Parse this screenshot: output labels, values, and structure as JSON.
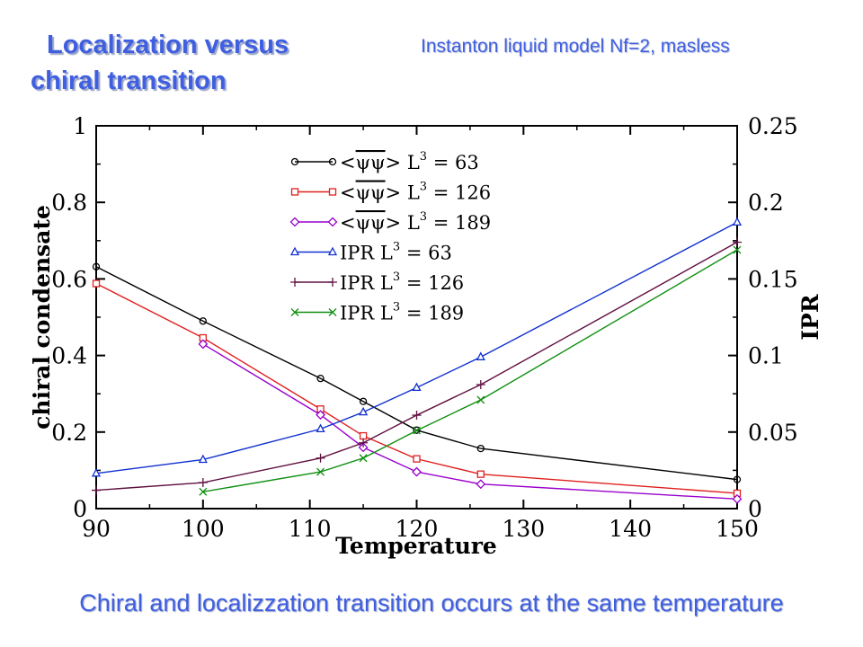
{
  "slide": {
    "title_line1": "Localization versus",
    "title_line2": "chiral transition",
    "subtitle": "Instanton liquid model Nf=2, masless",
    "caption": "Chiral and localizzation transition occurs at the same temperature"
  },
  "colors": {
    "accent": "#3f5fe0",
    "black": "#000000",
    "red": "#e02020",
    "purple": "#9900cc",
    "blue": "#1030d0",
    "maroon": "#601040",
    "green": "#109010"
  },
  "chart_data": {
    "type": "line",
    "title": "",
    "xlabel": "Temperature",
    "ylabel": "chiral condensate",
    "y2label": "IPR",
    "xlim": [
      90,
      150
    ],
    "ylim": [
      0,
      1
    ],
    "y2lim": [
      0,
      0.25
    ],
    "x_ticks": [
      "90",
      "100",
      "110",
      "120",
      "130",
      "140",
      "150"
    ],
    "y_ticks": [
      "0",
      "0.2",
      "0.4",
      "0.6",
      "0.8",
      "1"
    ],
    "y2_ticks": [
      "0",
      "0.05",
      "0.1",
      "0.15",
      "0.2",
      "0.25"
    ],
    "grid": false,
    "legend_position": "top-center",
    "series": [
      {
        "name": "<ψψ> L³ = 63",
        "legend": {
          "pre": "<",
          "psi": "ψψ",
          "post": ">  L",
          "sup": "3",
          "tail": " = 63"
        },
        "axis": "left",
        "color": "#000000",
        "marker": "circle",
        "x": [
          90,
          100,
          111,
          115,
          120,
          126,
          150
        ],
        "y": [
          0.632,
          0.49,
          0.34,
          0.28,
          0.205,
          0.157,
          0.076
        ]
      },
      {
        "name": "<ψψ> L³ = 126",
        "legend": {
          "pre": "<",
          "psi": "ψψ",
          "post": ">  L",
          "sup": "3",
          "tail": " = 126"
        },
        "axis": "left",
        "color": "#e02020",
        "marker": "square",
        "x": [
          90,
          100,
          111,
          115,
          120,
          126,
          150
        ],
        "y": [
          0.588,
          0.446,
          0.26,
          0.19,
          0.13,
          0.09,
          0.04
        ]
      },
      {
        "name": "<ψψ> L³ = 189",
        "legend": {
          "pre": "<",
          "psi": "ψψ",
          "post": ">  L",
          "sup": "3",
          "tail": " = 189"
        },
        "axis": "left",
        "color": "#9900cc",
        "marker": "diamond",
        "x": [
          100,
          111,
          115,
          120,
          126,
          150
        ],
        "y": [
          0.43,
          0.245,
          0.16,
          0.096,
          0.064,
          0.025
        ]
      },
      {
        "name": "IPR L³ = 63",
        "legend": {
          "pre": "IPR  L",
          "sup": "3",
          "tail": " = 63"
        },
        "axis": "right",
        "color": "#1030d0",
        "marker": "triangle",
        "x": [
          90,
          100,
          111,
          115,
          120,
          126,
          150
        ],
        "y": [
          0.023,
          0.032,
          0.052,
          0.063,
          0.079,
          0.099,
          0.187
        ]
      },
      {
        "name": "IPR L³ = 126",
        "legend": {
          "pre": "IPR  L",
          "sup": "3",
          "tail": " = 126"
        },
        "axis": "right",
        "color": "#601040",
        "marker": "plus",
        "x": [
          90,
          100,
          111,
          115,
          120,
          126,
          150
        ],
        "y": [
          0.012,
          0.017,
          0.033,
          0.043,
          0.061,
          0.081,
          0.174
        ]
      },
      {
        "name": "IPR L³ = 189",
        "legend": {
          "pre": "IPR  L",
          "sup": "3",
          "tail": " = 189"
        },
        "axis": "right",
        "color": "#109010",
        "marker": "cross",
        "x": [
          100,
          111,
          115,
          120,
          126,
          150
        ],
        "y": [
          0.011,
          0.024,
          0.033,
          0.051,
          0.071,
          0.169
        ]
      }
    ]
  }
}
